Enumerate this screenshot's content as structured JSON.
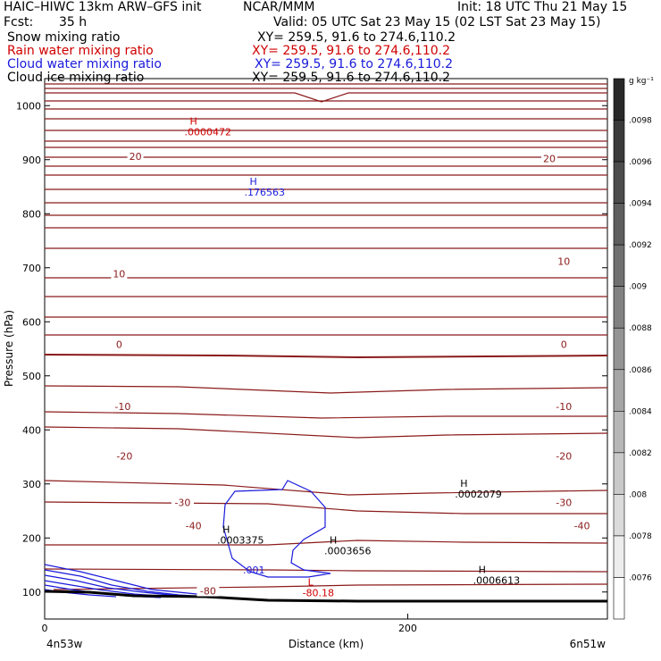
{
  "header": {
    "model": "HAIC–HIWC 13km ARW–GFS init",
    "org": "NCAR/MMM",
    "init": "Init: 18 UTC Thu 21 May 15",
    "fcst_label": "Fcst:",
    "fcst_value": "35 h",
    "valid": "Valid: 05 UTC Sat 23 May 15 (02 LST Sat 23 May 15)"
  },
  "fields": [
    {
      "name": "Snow mixing ratio",
      "xy": "XY= 259.5, 91.6 to 274.6,110.2",
      "color": "#000000"
    },
    {
      "name": "Rain water mixing ratio",
      "xy": "XY= 259.5, 91.6 to 274.6,110.2",
      "color": "#d00000"
    },
    {
      "name": "Cloud water mixing ratio",
      "xy": "XY= 259.5, 91.6 to 274.6,110.2",
      "color": "#1a1adb"
    },
    {
      "name": "Cloud ice mixing ratio",
      "xy": "XY= 259.5, 91.6 to 274.6,110.2",
      "color": "#000000"
    }
  ],
  "chart_data": {
    "type": "cross-section contour",
    "xlabel": "Distance (km)",
    "ylabel": "Pressure (hPa)",
    "xlim": [
      0,
      310
    ],
    "ylim": [
      1050,
      50
    ],
    "x_ticks": [
      0,
      200
    ],
    "y_ticks": [
      100,
      200,
      300,
      400,
      500,
      600,
      700,
      800,
      900,
      1000
    ],
    "left_endpoint": "4n53w",
    "right_endpoint": "6n51w",
    "temperature_contours": [
      {
        "label": "-80",
        "label_x": 90,
        "pressure": 102
      },
      {
        "label": "-40",
        "label_x": 82,
        "pressure": 223
      },
      {
        "label": "-40",
        "label_x": 296,
        "pressure": 223
      },
      {
        "label": "-30",
        "label_x": 76,
        "pressure": 266
      },
      {
        "label": "-30",
        "label_x": 286,
        "pressure": 266
      },
      {
        "label": "-20",
        "label_x": 44,
        "pressure": 352
      },
      {
        "label": "-20",
        "label_x": 286,
        "pressure": 352
      },
      {
        "label": "-10",
        "label_x": 43,
        "pressure": 443
      },
      {
        "label": "-10",
        "label_x": 286,
        "pressure": 443
      },
      {
        "label": "0",
        "label_x": 41,
        "pressure": 558
      },
      {
        "label": "0",
        "label_x": 286,
        "pressure": 558
      },
      {
        "label": "10",
        "label_x": 41,
        "pressure": 689
      },
      {
        "label": "10",
        "label_x": 286,
        "pressure": 712
      },
      {
        "label": "20",
        "label_x": 50,
        "pressure": 906
      },
      {
        "label": "20",
        "label_x": 278,
        "pressure": 902
      }
    ],
    "extrema": [
      {
        "type": "L",
        "value": "-80.18",
        "x": 142,
        "pressure": 102,
        "color": "#d00000"
      },
      {
        "type": "H",
        "value": ".0006613",
        "x": 236,
        "pressure": 125,
        "color": "#000000"
      },
      {
        "type": "H",
        "value": ".0003656",
        "x": 154,
        "pressure": 180,
        "color": "#000000"
      },
      {
        "type": "H",
        "value": ".0003375",
        "x": 95,
        "pressure": 200,
        "color": "#000000"
      },
      {
        "type": "H",
        "value": ".0002079",
        "x": 226,
        "pressure": 285,
        "color": "#000000"
      },
      {
        "type": "H",
        "value": ".176563",
        "x": 110,
        "pressure": 843,
        "color": "#1a1adb"
      },
      {
        "type": "H",
        "value": ".0000472",
        "x": 77,
        "pressure": 955,
        "color": "#d00000"
      }
    ],
    "cloud_water_contour_label": ".001",
    "colorbar": {
      "unit": "g kg⁻¹",
      "labels": [
        ".0098",
        ".0096",
        ".0094",
        ".0092",
        ".009",
        ".0088",
        ".0086",
        ".0084",
        ".0082",
        ".008",
        ".0078",
        ".0076"
      ]
    }
  }
}
